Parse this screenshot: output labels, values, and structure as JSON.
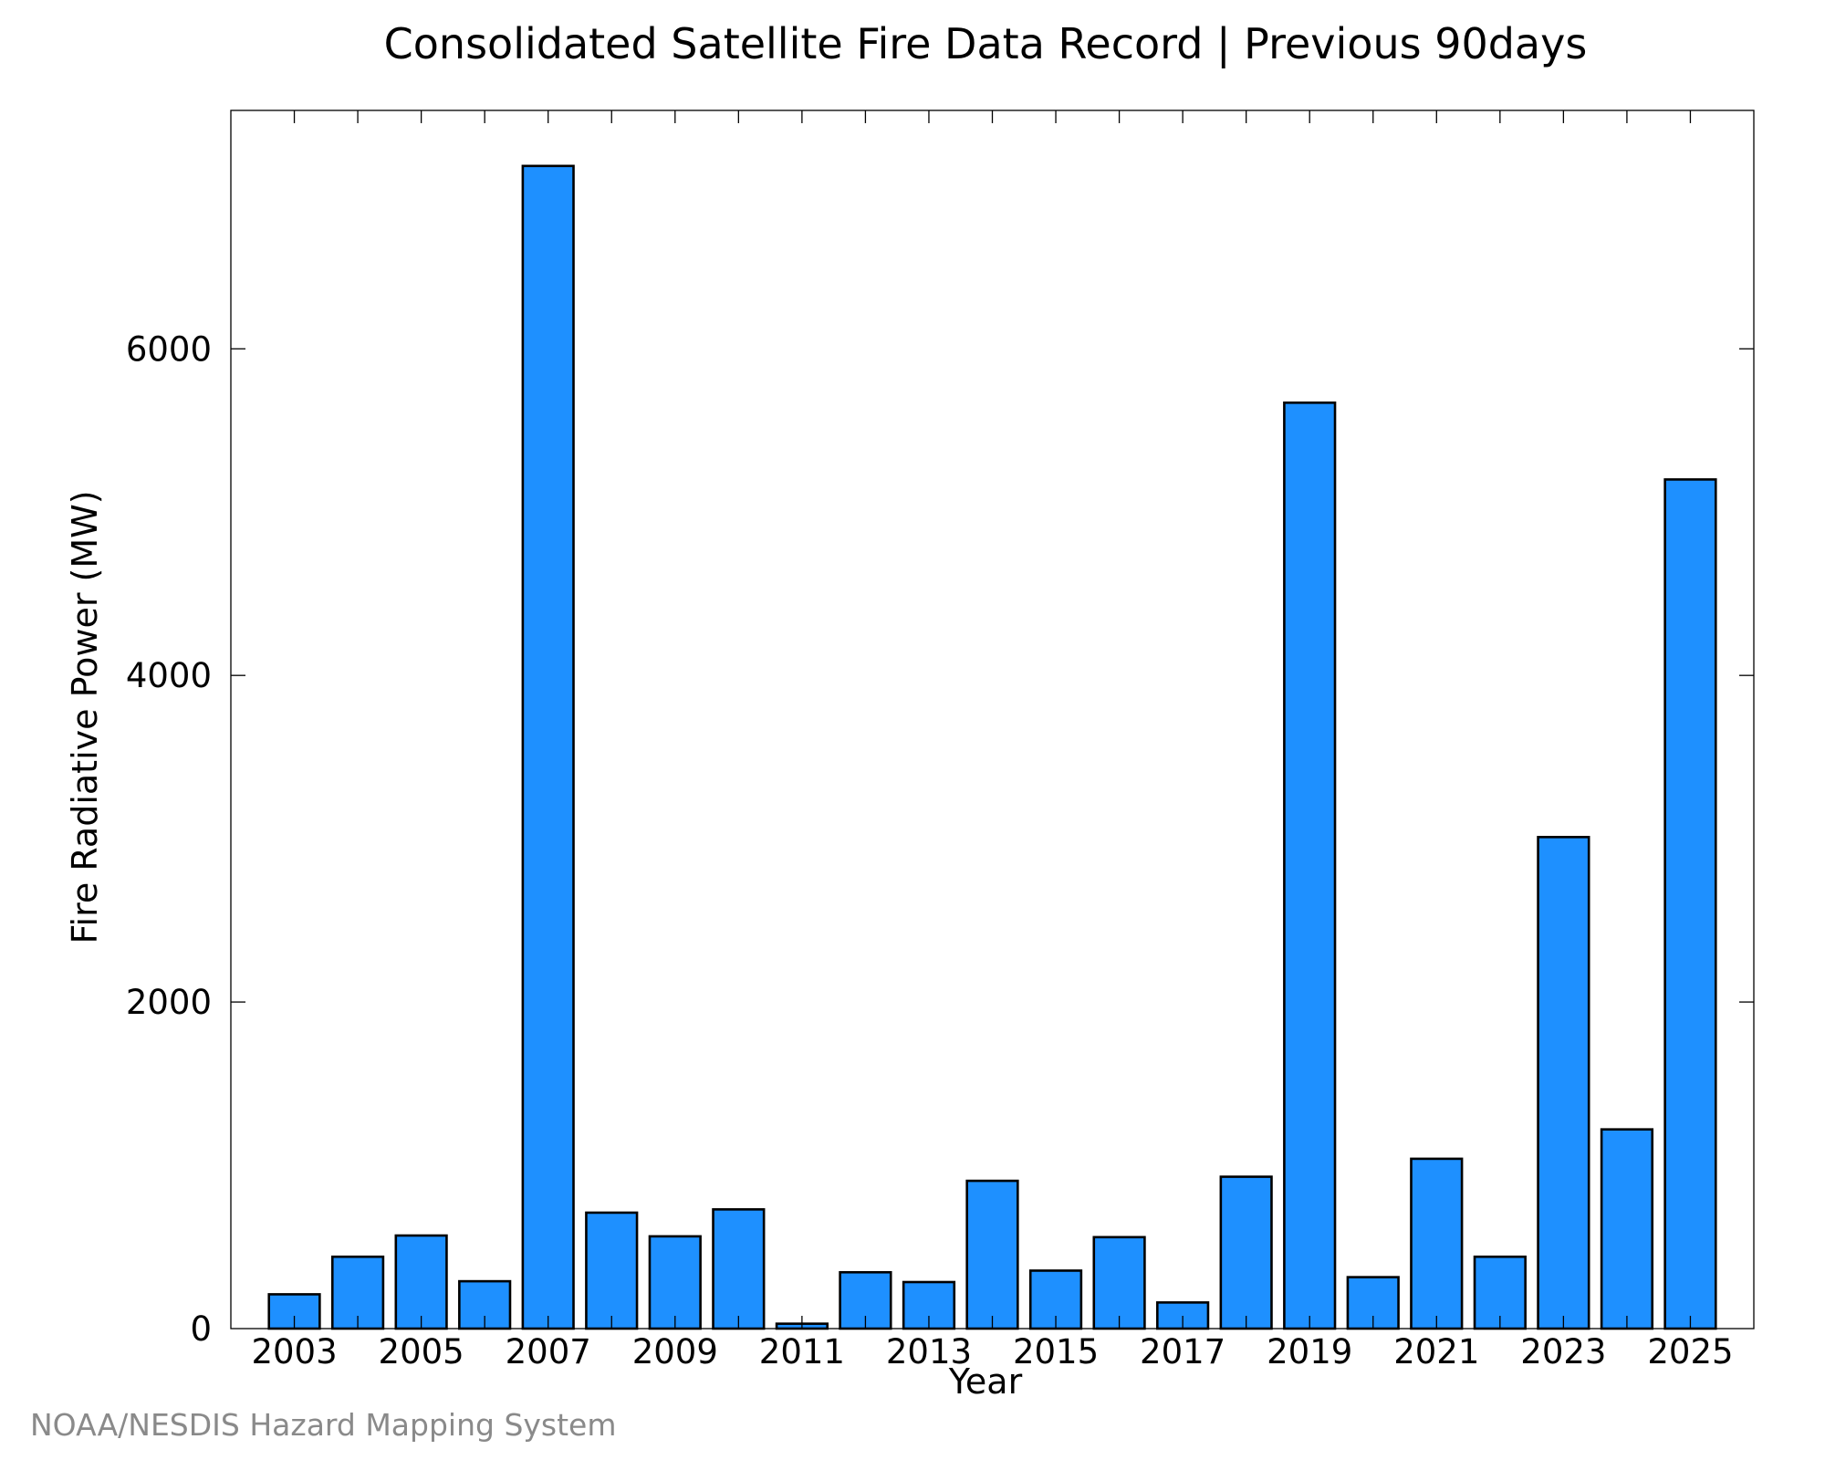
{
  "chart_data": {
    "type": "bar",
    "title": "Consolidated Satellite Fire Data Record | Previous 90days",
    "xlabel": "Year",
    "ylabel": "Fire Radiative Power (MW)",
    "source": "NOAA/NESDIS Hazard Mapping System",
    "categories": [
      "2003",
      "2004",
      "2005",
      "2006",
      "2007",
      "2008",
      "2009",
      "2010",
      "2011",
      "2012",
      "2013",
      "2014",
      "2015",
      "2016",
      "2017",
      "2018",
      "2019",
      "2020",
      "2021",
      "2022",
      "2023",
      "2024",
      "2025"
    ],
    "values": [
      210,
      440,
      570,
      290,
      7120,
      710,
      565,
      730,
      30,
      345,
      285,
      905,
      355,
      560,
      160,
      930,
      5670,
      315,
      1040,
      440,
      3010,
      1220,
      5200
    ],
    "x_tick_labels": [
      "2003",
      "2005",
      "2007",
      "2009",
      "2011",
      "2013",
      "2015",
      "2017",
      "2019",
      "2021",
      "2023",
      "2025"
    ],
    "y_ticks": [
      0,
      2000,
      4000,
      6000
    ],
    "y_tick_labels": [
      "0",
      "2000",
      "4000",
      "6000"
    ],
    "ylim": [
      0,
      7460
    ],
    "xlim": [
      2002,
      2026
    ],
    "bar_color": "#1e90ff",
    "bar_edge_color": "#000000",
    "grid": false,
    "legend": "none"
  }
}
